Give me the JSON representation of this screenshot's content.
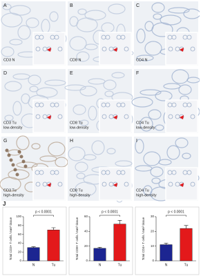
{
  "panels": [
    {
      "label": "A",
      "caption": [
        "CD3 N"
      ]
    },
    {
      "label": "B",
      "caption": [
        "CD8 N"
      ]
    },
    {
      "label": "C",
      "caption": [
        "CD4 N"
      ]
    },
    {
      "label": "D",
      "caption": [
        "CD3 Tu",
        "low-density"
      ]
    },
    {
      "label": "E",
      "caption": [
        "CD8 Tu",
        "low-density"
      ]
    },
    {
      "label": "F",
      "caption": [
        "CD4 Tu",
        "low-density"
      ]
    },
    {
      "label": "G",
      "caption": [
        "CD3 Tu",
        "high-density"
      ]
    },
    {
      "label": "H",
      "caption": [
        "CD8 Tu",
        "high-density"
      ]
    },
    {
      "label": "I",
      "caption": [
        "CD4 Tu",
        "high-density"
      ]
    }
  ],
  "chart_label": "J",
  "chart_data": [
    {
      "type": "bar",
      "y_label": "Total CD3+ T cells / mm² tissue",
      "annotation": "p < 0.0001",
      "categories": [
        "N",
        "Tu"
      ],
      "values": [
        30,
        70
      ],
      "errors": [
        2,
        5
      ],
      "colors": [
        "#1c2591",
        "#e3191b"
      ],
      "ylim": [
        0,
        100
      ],
      "yticks": [
        0,
        20,
        40,
        60,
        80,
        100
      ]
    },
    {
      "type": "bar",
      "y_label": "Total CD8+ T cells / mm² tissue",
      "annotation": "p < 0.0001",
      "categories": [
        "N",
        "Tu"
      ],
      "values": [
        17,
        50
      ],
      "errors": [
        1.5,
        5
      ],
      "colors": [
        "#1c2591",
        "#e3191b"
      ],
      "ylim": [
        0,
        60
      ],
      "yticks": [
        0,
        20,
        40,
        60
      ]
    },
    {
      "type": "bar",
      "y_label": "Total CD4+ T cells / mm² tissue",
      "annotation": "p < 0.0001",
      "categories": [
        "N",
        "Tu"
      ],
      "values": [
        11,
        22
      ],
      "errors": [
        1,
        2
      ],
      "colors": [
        "#1c2591",
        "#e3191b"
      ],
      "ylim": [
        0,
        30
      ],
      "yticks": [
        0,
        10,
        20,
        30
      ]
    }
  ]
}
